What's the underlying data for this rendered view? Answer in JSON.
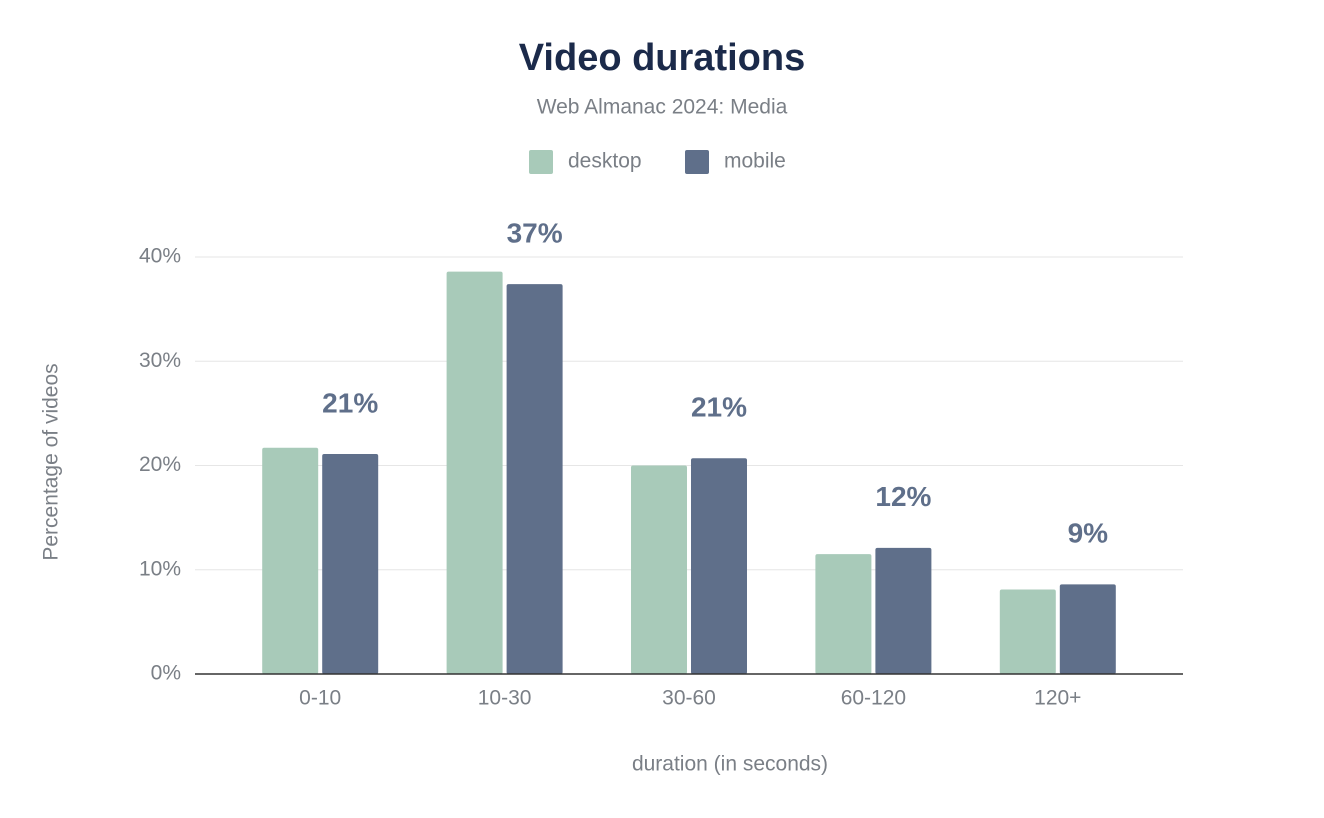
{
  "chart_data": {
    "type": "bar",
    "title": "Video durations",
    "subtitle": "Web Almanac 2024: Media",
    "x_label": "duration (in seconds)",
    "y_label": "Percentage of videos",
    "categories": [
      "0-10",
      "10-30",
      "30-60",
      "60-120",
      "120+"
    ],
    "series": [
      {
        "name": "desktop",
        "color": "#a8cab9",
        "values": [
          21.7,
          38.6,
          20.0,
          11.5,
          8.1
        ]
      },
      {
        "name": "mobile",
        "color": "#5f6f8a",
        "values": [
          21.1,
          37.4,
          20.7,
          12.1,
          8.6
        ],
        "value_labels": [
          "21%",
          "37%",
          "21%",
          "12%",
          "9%"
        ]
      }
    ],
    "ylim": [
      0,
      40
    ],
    "yticks": [
      {
        "value": 0,
        "label": "0%"
      },
      {
        "value": 10,
        "label": "10%"
      },
      {
        "value": 20,
        "label": "20%"
      },
      {
        "value": 30,
        "label": "30%"
      },
      {
        "value": 40,
        "label": "40%"
      }
    ],
    "grid": true
  }
}
